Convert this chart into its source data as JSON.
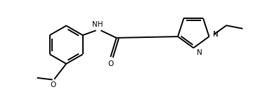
{
  "bg_color": "#ffffff",
  "line_color": "#000000",
  "text_color": "#000000",
  "figsize": [
    3.77,
    1.41
  ],
  "dpi": 100,
  "lw": 1.4,
  "fs": 7.5,
  "xlim": [
    0,
    10
  ],
  "ylim": [
    0,
    3.74
  ]
}
